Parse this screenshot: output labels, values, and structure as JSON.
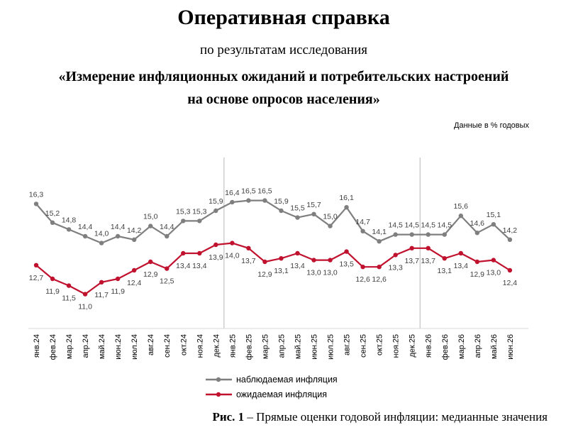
{
  "header": {
    "title": "Оперативная справка",
    "subtitle": "по результатам исследования",
    "study_line1": "«Измерение инфляционных ожиданий и потребительских настроений",
    "study_line2": "на основе опросов населения»",
    "units": "Данные в % годовых"
  },
  "caption": {
    "figure_label": "Рис. 1",
    "figure_text": " – Прямые оценки годовой инфляции: медианные значения"
  },
  "chart_data": {
    "type": "line",
    "categories": [
      "янв.24",
      "фев.24",
      "мар.24",
      "апр.24",
      "май.24",
      "июн.24",
      "июл.24",
      "авг.24",
      "сен.24",
      "окт.24",
      "ноя.24",
      "дек.24",
      "янв.25",
      "фев.25",
      "мар.25",
      "апр.25",
      "май.25",
      "июн.25",
      "июл.25",
      "авг.25",
      "сен.25",
      "окт.25",
      "ноя.25",
      "дек.25",
      "янв.26",
      "фев.26",
      "мар.26",
      "апр.26",
      "май.26",
      "июн.26"
    ],
    "series": [
      {
        "name": "наблюдаемая инфляция",
        "color": "#7f7f7f",
        "values": [
          16.3,
          15.2,
          14.8,
          14.4,
          14.0,
          14.4,
          14.2,
          15.0,
          14.4,
          15.3,
          15.3,
          15.9,
          16.4,
          16.5,
          16.5,
          15.9,
          15.5,
          15.7,
          15.0,
          16.1,
          14.7,
          14.1,
          14.5,
          14.5,
          14.5,
          14.5,
          15.6,
          14.6,
          15.1,
          14.2
        ],
        "labels": [
          "16,3",
          "15,2",
          "14,8",
          "14,4",
          "14,0",
          "14,4",
          "14,2",
          "15,0",
          "14,4",
          "15,3",
          "15,3",
          "15,9",
          "16,4",
          "16,5",
          "16,5",
          "15,9",
          "15,5",
          "15,7",
          "15,0",
          "16,1",
          "14,7",
          "14,1",
          "14,5",
          "14,5",
          "14,5",
          "14,5",
          "15,6",
          "14,6",
          "15,1",
          "14,2"
        ]
      },
      {
        "name": "ожидаемая инфляция",
        "color": "#c0122e",
        "values": [
          12.7,
          11.9,
          11.5,
          11.0,
          11.7,
          11.9,
          12.4,
          12.9,
          12.5,
          13.4,
          13.4,
          13.9,
          14.0,
          13.7,
          12.9,
          13.1,
          13.4,
          13.0,
          13.0,
          13.5,
          12.6,
          12.6,
          13.3,
          13.7,
          13.7,
          13.1,
          13.4,
          12.9,
          13.0,
          12.4
        ],
        "labels": [
          "12,7",
          "11,9",
          "11,5",
          "11,0",
          "11,7",
          "11,9",
          "12,4",
          "12,9",
          "12,5",
          "13,4",
          "13,4",
          "13,9",
          "14,0",
          "13,7",
          "12,9",
          "13,1",
          "13,4",
          "13,0",
          "13,0",
          "13,5",
          "12,6",
          "12,6",
          "13,3",
          "13,7",
          "13,7",
          "13,1",
          "13,4",
          "12,9",
          "13,0",
          "12,4"
        ]
      }
    ],
    "year_dividers_after": [
      "дек.24",
      "дек.25"
    ],
    "legend_position": "bottom-center",
    "grid": false
  }
}
